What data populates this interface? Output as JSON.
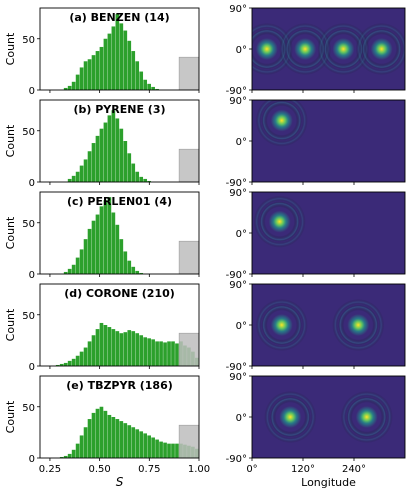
{
  "chart_data": {
    "type": "bar",
    "description_type": "histogram grid with sky maps",
    "histogram_axis": {
      "xlabel": "S",
      "ylabel": "Count",
      "xlim": [
        0.2,
        1.0
      ],
      "xticks": [
        0.25,
        0.5,
        0.75,
        1.0
      ],
      "xtick_labels": [
        "0.25",
        "0.50",
        "0.75",
        "1.00"
      ],
      "yticks": [
        0,
        50
      ],
      "ytick_labels": [
        "0",
        "50"
      ],
      "shaded_region": [
        0.9,
        1.0
      ],
      "bar_color": "#2ca02c",
      "shade_color": "#bdbdbd"
    },
    "map_axis": {
      "xlabel": "Longitude",
      "xlim": [
        0,
        360
      ],
      "xticks": [
        0,
        120,
        240
      ],
      "xtick_labels": [
        "0°",
        "120°",
        "240°"
      ],
      "ylim": [
        -90,
        90
      ],
      "yticks": [
        90,
        0,
        -90
      ],
      "ytick_labels": [
        "90°",
        "0°",
        "-90°"
      ],
      "background_color": "#3b2a78",
      "peak_color": "#fde725"
    },
    "panels": [
      {
        "label": "(a) BENZEN (14)",
        "ymax": 80,
        "peak_S": 0.6,
        "histogram": {
          "centers": [
            0.33,
            0.35,
            0.37,
            0.39,
            0.41,
            0.43,
            0.45,
            0.47,
            0.49,
            0.51,
            0.53,
            0.55,
            0.57,
            0.59,
            0.61,
            0.63,
            0.65,
            0.67,
            0.69,
            0.71,
            0.73,
            0.75,
            0.77,
            0.79
          ],
          "counts": [
            2,
            4,
            8,
            15,
            22,
            28,
            30,
            34,
            38,
            42,
            50,
            55,
            62,
            74,
            65,
            58,
            48,
            38,
            28,
            18,
            10,
            6,
            3,
            1
          ]
        },
        "shade_height": 32,
        "map_spots": [
          {
            "lon": 35,
            "lat": 0,
            "strength": 1.0
          },
          {
            "lon": 125,
            "lat": 0,
            "strength": 1.0
          },
          {
            "lon": 215,
            "lat": 0,
            "strength": 1.0
          },
          {
            "lon": 305,
            "lat": 0,
            "strength": 1.0
          }
        ]
      },
      {
        "label": "(b) PYRENE (3)",
        "ymax": 80,
        "peak_S": 0.57,
        "histogram": {
          "centers": [
            0.35,
            0.37,
            0.39,
            0.41,
            0.43,
            0.45,
            0.47,
            0.49,
            0.51,
            0.53,
            0.55,
            0.57,
            0.59,
            0.61,
            0.63,
            0.65,
            0.67,
            0.69,
            0.71,
            0.73,
            0.75
          ],
          "counts": [
            3,
            6,
            10,
            16,
            22,
            30,
            38,
            45,
            52,
            58,
            65,
            70,
            62,
            52,
            40,
            28,
            18,
            10,
            5,
            3,
            1
          ]
        },
        "shade_height": 32,
        "map_spots": [
          {
            "lon": 70,
            "lat": 45,
            "strength": 1.0
          }
        ]
      },
      {
        "label": "(c) PERLEN01 (4)",
        "ymax": 80,
        "peak_S": 0.57,
        "histogram": {
          "centers": [
            0.33,
            0.35,
            0.37,
            0.39,
            0.41,
            0.43,
            0.45,
            0.47,
            0.49,
            0.51,
            0.53,
            0.55,
            0.57,
            0.59,
            0.61,
            0.63,
            0.65,
            0.67,
            0.69,
            0.71
          ],
          "counts": [
            2,
            5,
            9,
            16,
            24,
            34,
            44,
            52,
            58,
            66,
            72,
            75,
            60,
            48,
            34,
            22,
            13,
            7,
            3,
            1
          ]
        },
        "shade_height": 32,
        "map_spots": [
          {
            "lon": 65,
            "lat": 25,
            "strength": 1.0
          }
        ]
      },
      {
        "label": "(d) CORONE (210)",
        "ymax": 80,
        "peak_S": 0.5,
        "histogram": {
          "centers": [
            0.29,
            0.31,
            0.33,
            0.35,
            0.37,
            0.39,
            0.41,
            0.43,
            0.45,
            0.47,
            0.49,
            0.51,
            0.53,
            0.55,
            0.57,
            0.59,
            0.61,
            0.63,
            0.65,
            0.67,
            0.69,
            0.71,
            0.73,
            0.75,
            0.77,
            0.79,
            0.81,
            0.83,
            0.85,
            0.87,
            0.89,
            0.91,
            0.93,
            0.95,
            0.97,
            0.99
          ],
          "counts": [
            1,
            2,
            3,
            5,
            7,
            10,
            14,
            18,
            24,
            30,
            36,
            42,
            40,
            38,
            36,
            34,
            32,
            33,
            35,
            34,
            32,
            30,
            28,
            27,
            26,
            24,
            24,
            23,
            24,
            24,
            22,
            24,
            20,
            18,
            14,
            8
          ]
        },
        "shade_height": 32,
        "map_spots": [
          {
            "lon": 70,
            "lat": 0,
            "strength": 1.0
          },
          {
            "lon": 250,
            "lat": 0,
            "strength": 1.0
          }
        ]
      },
      {
        "label": "(e) TBZPYR (186)",
        "ymax": 80,
        "peak_S": 0.5,
        "histogram": {
          "centers": [
            0.31,
            0.33,
            0.35,
            0.37,
            0.39,
            0.41,
            0.43,
            0.45,
            0.47,
            0.49,
            0.51,
            0.53,
            0.55,
            0.57,
            0.59,
            0.61,
            0.63,
            0.65,
            0.67,
            0.69,
            0.71,
            0.73,
            0.75,
            0.77,
            0.79,
            0.81,
            0.83,
            0.85,
            0.87,
            0.89,
            0.91,
            0.93,
            0.95,
            0.97,
            0.99
          ],
          "counts": [
            1,
            2,
            4,
            8,
            14,
            22,
            30,
            38,
            44,
            48,
            50,
            46,
            42,
            40,
            38,
            36,
            34,
            32,
            30,
            28,
            26,
            24,
            22,
            20,
            18,
            16,
            15,
            14,
            14,
            14,
            14,
            13,
            12,
            11,
            9
          ]
        },
        "shade_height": 32,
        "map_spots": [
          {
            "lon": 90,
            "lat": 0,
            "strength": 1.0
          },
          {
            "lon": 270,
            "lat": 0,
            "strength": 1.0
          }
        ]
      }
    ]
  }
}
